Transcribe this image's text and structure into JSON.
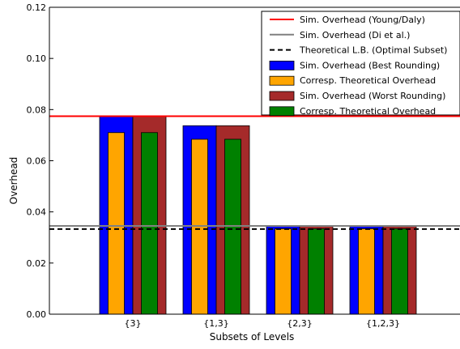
{
  "chart_data": {
    "type": "bar",
    "xlabel": "Subsets of Levels",
    "ylabel": "Overhead",
    "ylim": [
      0,
      0.12
    ],
    "yticks": [
      "0.00",
      "0.02",
      "0.04",
      "0.06",
      "0.08",
      "0.10",
      "0.12"
    ],
    "grid": false,
    "legend_position": "top-right",
    "categories": [
      "{3}",
      "{1,3}",
      "{2,3}",
      "{1,2,3}"
    ],
    "series": [
      {
        "name": "Sim. Overhead (Best Rounding)",
        "color": "#0000ff",
        "group": "best",
        "role": "outer",
        "values": [
          0.0773,
          0.0737,
          0.0344,
          0.0343
        ]
      },
      {
        "name": "Corresp. Theoretical Overhead",
        "color": "#ffa500",
        "group": "best",
        "role": "inner",
        "values": [
          0.071,
          0.0684,
          0.0334,
          0.0334
        ]
      },
      {
        "name": "Sim. Overhead (Worst Rounding)",
        "color": "#a52a2a",
        "group": "worst",
        "role": "outer",
        "values": [
          0.0773,
          0.0737,
          0.0344,
          0.0343
        ]
      },
      {
        "name": "Corresp. Theoretical Overhead",
        "color": "#008000",
        "group": "worst",
        "role": "inner",
        "values": [
          0.071,
          0.0684,
          0.0334,
          0.0334
        ]
      }
    ],
    "reference_lines": [
      {
        "name": "Sim. Overhead (Young/Daly)",
        "color": "#ff0000",
        "style": "solid",
        "value": 0.0774
      },
      {
        "name": "Sim. Overhead (Di et al.)",
        "color": "#808080",
        "style": "solid",
        "value": 0.0345
      },
      {
        "name": "Theoretical L.B. (Optimal Subset)",
        "color": "#000000",
        "style": "dashed",
        "value": 0.0333
      }
    ]
  }
}
